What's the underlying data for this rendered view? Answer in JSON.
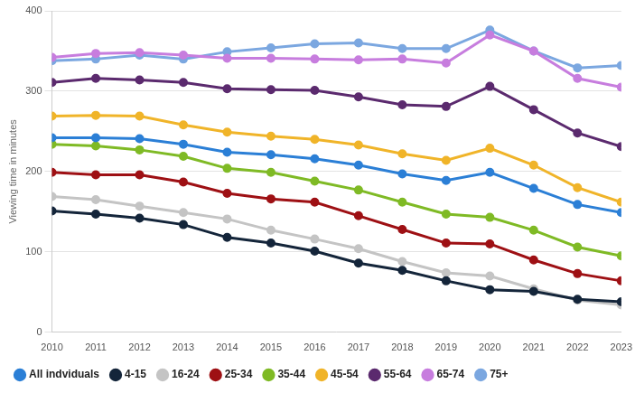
{
  "chart_data": {
    "type": "line",
    "y_label": "Viewing time in minutes",
    "categories": [
      "2010",
      "2011",
      "2012",
      "2013",
      "2014",
      "2015",
      "2016",
      "2017",
      "2018",
      "2019",
      "2020",
      "2021",
      "2022",
      "2023"
    ],
    "series": [
      {
        "name": "All indviduals",
        "color": "#2b7fd6",
        "values": [
          242,
          242,
          241,
          234,
          224,
          221,
          216,
          208,
          197,
          189,
          199,
          179,
          159,
          149
        ]
      },
      {
        "name": "4-15",
        "color": "#14253a",
        "values": [
          151,
          147,
          142,
          134,
          118,
          111,
          101,
          86,
          77,
          64,
          53,
          51,
          41,
          38
        ]
      },
      {
        "name": "16-24",
        "color": "#c4c4c4",
        "values": [
          169,
          165,
          157,
          149,
          141,
          127,
          116,
          104,
          88,
          74,
          70,
          54,
          40,
          34
        ]
      },
      {
        "name": "25-34",
        "color": "#9e1014",
        "values": [
          199,
          196,
          196,
          187,
          173,
          166,
          162,
          145,
          128,
          111,
          110,
          90,
          73,
          64
        ]
      },
      {
        "name": "35-44",
        "color": "#7fba25",
        "values": [
          234,
          232,
          227,
          219,
          204,
          199,
          188,
          177,
          162,
          147,
          143,
          127,
          106,
          95
        ]
      },
      {
        "name": "45-54",
        "color": "#f0b429",
        "values": [
          269,
          270,
          269,
          258,
          249,
          244,
          240,
          233,
          222,
          214,
          229,
          208,
          180,
          162
        ]
      },
      {
        "name": "55-64",
        "color": "#5b2a6e",
        "values": [
          311,
          316,
          314,
          311,
          303,
          302,
          301,
          293,
          283,
          281,
          306,
          277,
          248,
          231
        ]
      },
      {
        "name": "65-74",
        "color": "#c77dde",
        "values": [
          342,
          347,
          348,
          345,
          341,
          341,
          340,
          339,
          340,
          335,
          370,
          350,
          316,
          305
        ]
      },
      {
        "name": "75+",
        "color": "#7ba7e0",
        "values": [
          338,
          340,
          345,
          340,
          349,
          354,
          359,
          360,
          353,
          353,
          376,
          350,
          329,
          332
        ]
      }
    ],
    "ylim": [
      0,
      400
    ],
    "yticks": [
      0,
      100,
      200,
      300,
      400
    ],
    "grid": true,
    "legend": "bottom",
    "marker": "circle"
  }
}
